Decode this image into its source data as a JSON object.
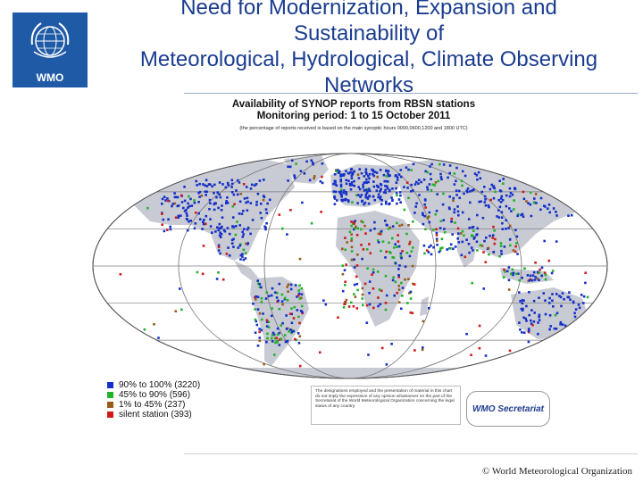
{
  "logo": {
    "label": "WMO"
  },
  "title": {
    "line1": "Need for Modernization, Expansion and",
    "line2": "Sustainability of",
    "line3": "Meteorological, Hydrological, Climate Observing",
    "line4": "Networks"
  },
  "map": {
    "title": "Availability of SYNOP reports from RBSN stations",
    "subtitle": "Monitoring period: 1 to 15 October 2011",
    "note": "(the percentage of reports received is based on the main synoptic hours 0000,0600,1200 and 1800 UTC)"
  },
  "legend": {
    "items": [
      {
        "label": "90% to 100% (3220)",
        "color": "#1530c8"
      },
      {
        "label": "45% to 90% (596)",
        "color": "#22b22a"
      },
      {
        "label": "1% to 45% (237)",
        "color": "#9a5a1c"
      },
      {
        "label": "silent station (393)",
        "color": "#d01a1a"
      }
    ]
  },
  "disclaimer": "The designations employed and the presentation of material in this chart do not imply the expression of any opinion whatsoever on the part of the Secretariat of the World Meteorological Organization concerning the legal status of any country.",
  "secretariat": "WMO Secretariat",
  "footer": "© World Meteorological Organization",
  "colors": {
    "ocean": "#ffffff",
    "land": "#c8cbd4",
    "title": "#1a3c8f",
    "logo_bg": "#1f5aa6"
  }
}
